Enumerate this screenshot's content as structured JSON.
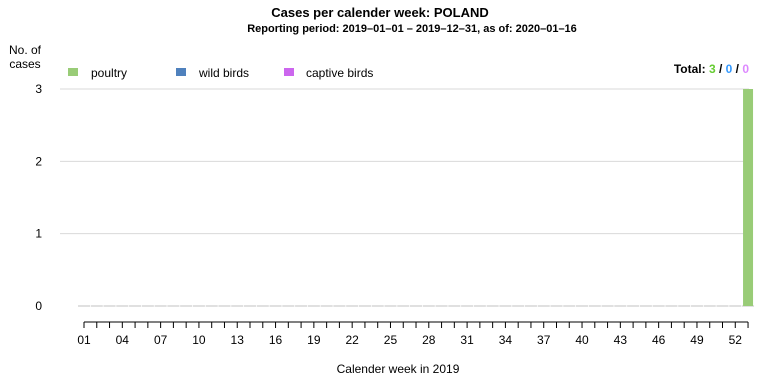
{
  "chart_data": {
    "type": "bar",
    "title": "Cases per calender week: POLAND",
    "subtitle": "Reporting period: 2019–01–01 – 2019–12–31, as of: 2020–01–16",
    "ylabel_line1": "No. of",
    "ylabel_line2": "cases",
    "xlabel": "Calender week in 2019",
    "ylim": [
      0,
      3
    ],
    "yticks": [
      "0",
      "1",
      "2",
      "3"
    ],
    "week_count": 53,
    "xticks": [
      "01",
      "04",
      "07",
      "10",
      "13",
      "16",
      "19",
      "22",
      "25",
      "28",
      "31",
      "34",
      "37",
      "40",
      "43",
      "46",
      "49",
      "52"
    ],
    "xtick_weeks": [
      1,
      4,
      7,
      10,
      13,
      16,
      19,
      22,
      25,
      28,
      31,
      34,
      37,
      40,
      43,
      46,
      49,
      52
    ],
    "series": [
      {
        "name": "poultry",
        "color": "#99cc77",
        "values": {
          "53": 3
        }
      },
      {
        "name": "wild birds",
        "color": "#4f81bd",
        "values": {}
      },
      {
        "name": "captive birds",
        "color": "#cc66ee",
        "values": {}
      }
    ],
    "total_label": "Total:",
    "totals": [
      "3",
      "0",
      "0"
    ],
    "total_colors": [
      "#66cc33",
      "#3399ff",
      "#dd88ff"
    ],
    "separator": "/",
    "grid": true,
    "legend_position": "top-left"
  }
}
